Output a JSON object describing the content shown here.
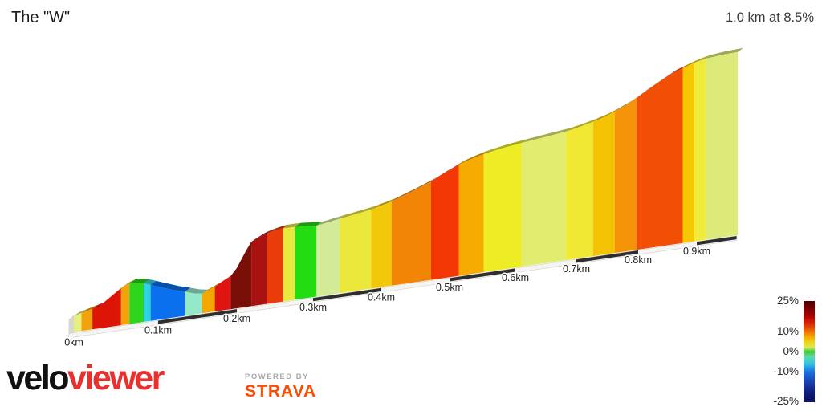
{
  "header": {
    "title": "The \"W\"",
    "summary": "1.0 km at 8.5%"
  },
  "chart_data": {
    "type": "area",
    "title": "The \"W\"",
    "subtitle": "1.0 km at 8.5%",
    "total_distance_km": 1.0,
    "avg_gradient_pct": 8.5,
    "x_ticks": [
      {
        "km": 0.0,
        "label": "0km"
      },
      {
        "km": 0.1,
        "label": "0.1km"
      },
      {
        "km": 0.2,
        "label": "0.2km"
      },
      {
        "km": 0.3,
        "label": "0.3km"
      },
      {
        "km": 0.4,
        "label": "0.4km"
      },
      {
        "km": 0.5,
        "label": "0.5km"
      },
      {
        "km": 0.6,
        "label": "0.6km"
      },
      {
        "km": 0.7,
        "label": "0.7km"
      },
      {
        "km": 0.8,
        "label": "0.8km"
      },
      {
        "km": 0.9,
        "label": "0.9km"
      }
    ],
    "legend": {
      "labels": [
        "25%",
        "10%",
        "0%",
        "-10%",
        "-25%"
      ],
      "values": [
        25,
        10,
        0,
        -10,
        -25
      ],
      "min_pct": -25,
      "max_pct": 25,
      "gradient_stops": [
        {
          "pct": 0,
          "color": "#4c0000"
        },
        {
          "pct": 8,
          "color": "#7e0000"
        },
        {
          "pct": 16,
          "color": "#b40400"
        },
        {
          "pct": 23,
          "color": "#dd2c00"
        },
        {
          "pct": 30,
          "color": "#f07000"
        },
        {
          "pct": 36,
          "color": "#f4ae00"
        },
        {
          "pct": 42,
          "color": "#eede1c"
        },
        {
          "pct": 46,
          "color": "#d2e860"
        },
        {
          "pct": 50,
          "color": "#3ecc30"
        },
        {
          "pct": 55,
          "color": "#5ed8a8"
        },
        {
          "pct": 62,
          "color": "#30c4e8"
        },
        {
          "pct": 70,
          "color": "#1874e0"
        },
        {
          "pct": 80,
          "color": "#1840b4"
        },
        {
          "pct": 90,
          "color": "#101e80"
        },
        {
          "pct": 100,
          "color": "#0a1258"
        }
      ]
    },
    "segments": [
      {
        "from_km": 0.0,
        "to_km": 0.009,
        "gradient_pct": 3,
        "color": "#e9ee7c"
      },
      {
        "from_km": 0.009,
        "to_km": 0.022,
        "gradient_pct": 8,
        "color": "#f2a30b"
      },
      {
        "from_km": 0.022,
        "to_km": 0.056,
        "gradient_pct": 13,
        "color": "#dd1507"
      },
      {
        "from_km": 0.056,
        "to_km": 0.066,
        "gradient_pct": 8,
        "color": "#f2a30b"
      },
      {
        "from_km": 0.066,
        "to_km": 0.083,
        "gradient_pct": 0,
        "color": "#2cd61c"
      },
      {
        "from_km": 0.083,
        "to_km": 0.091,
        "gradient_pct": -5,
        "color": "#2fd4e2"
      },
      {
        "from_km": 0.091,
        "to_km": 0.134,
        "gradient_pct": -9,
        "color": "#0a70ee"
      },
      {
        "from_km": 0.134,
        "to_km": 0.156,
        "gradient_pct": -3,
        "color": "#93e9c9"
      },
      {
        "from_km": 0.156,
        "to_km": 0.172,
        "gradient_pct": 8,
        "color": "#f3a800"
      },
      {
        "from_km": 0.172,
        "to_km": 0.192,
        "gradient_pct": 12,
        "color": "#e01410"
      },
      {
        "from_km": 0.192,
        "to_km": 0.219,
        "gradient_pct": 22,
        "color": "#7a0f08"
      },
      {
        "from_km": 0.219,
        "to_km": 0.239,
        "gradient_pct": 18,
        "color": "#a81210"
      },
      {
        "from_km": 0.239,
        "to_km": 0.26,
        "gradient_pct": 13,
        "color": "#ea3b0a"
      },
      {
        "from_km": 0.26,
        "to_km": 0.276,
        "gradient_pct": 5,
        "color": "#eae73e"
      },
      {
        "from_km": 0.276,
        "to_km": 0.305,
        "gradient_pct": 0,
        "color": "#23dc12"
      },
      {
        "from_km": 0.305,
        "to_km": 0.339,
        "gradient_pct": 3,
        "color": "#d3ea98"
      },
      {
        "from_km": 0.339,
        "to_km": 0.385,
        "gradient_pct": 5,
        "color": "#ebe83b"
      },
      {
        "from_km": 0.385,
        "to_km": 0.415,
        "gradient_pct": 7,
        "color": "#f2c80a"
      },
      {
        "from_km": 0.415,
        "to_km": 0.473,
        "gradient_pct": 9,
        "color": "#f28406"
      },
      {
        "from_km": 0.473,
        "to_km": 0.514,
        "gradient_pct": 13,
        "color": "#f23705"
      },
      {
        "from_km": 0.514,
        "to_km": 0.552,
        "gradient_pct": 7,
        "color": "#f5ab00"
      },
      {
        "from_km": 0.552,
        "to_km": 0.61,
        "gradient_pct": 5,
        "color": "#edec25"
      },
      {
        "from_km": 0.61,
        "to_km": 0.683,
        "gradient_pct": 4,
        "color": "#e2ec6e"
      },
      {
        "from_km": 0.683,
        "to_km": 0.727,
        "gradient_pct": 5,
        "color": "#f0e832"
      },
      {
        "from_km": 0.727,
        "to_km": 0.762,
        "gradient_pct": 7,
        "color": "#f4c404"
      },
      {
        "from_km": 0.762,
        "to_km": 0.797,
        "gradient_pct": 9,
        "color": "#f49208"
      },
      {
        "from_km": 0.797,
        "to_km": 0.876,
        "gradient_pct": 12,
        "color": "#f04f05"
      },
      {
        "from_km": 0.876,
        "to_km": 0.896,
        "gradient_pct": 7,
        "color": "#f5c800"
      },
      {
        "from_km": 0.896,
        "to_km": 0.916,
        "gradient_pct": 5,
        "color": "#f0ea3a"
      },
      {
        "from_km": 0.916,
        "to_km": 0.97,
        "gradient_pct": 3,
        "color": "#dcea7a"
      }
    ],
    "elevation_profile": [
      {
        "km": 0.0,
        "elev_m": 0.0
      },
      {
        "km": 0.03,
        "elev_m": 3.0
      },
      {
        "km": 0.058,
        "elev_m": 11.0
      },
      {
        "km": 0.068,
        "elev_m": 12.5
      },
      {
        "km": 0.081,
        "elev_m": 11.5
      },
      {
        "km": 0.1,
        "elev_m": 8.5
      },
      {
        "km": 0.12,
        "elev_m": 5.6
      },
      {
        "km": 0.134,
        "elev_m": 4.0
      },
      {
        "km": 0.145,
        "elev_m": 2.6
      },
      {
        "km": 0.156,
        "elev_m": 1.8
      },
      {
        "km": 0.172,
        "elev_m": 4.4
      },
      {
        "km": 0.192,
        "elev_m": 8.4
      },
      {
        "km": 0.2,
        "elev_m": 12.0
      },
      {
        "km": 0.206,
        "elev_m": 16.0
      },
      {
        "km": 0.213,
        "elev_m": 20.5
      },
      {
        "km": 0.219,
        "elev_m": 24.0
      },
      {
        "km": 0.229,
        "elev_m": 25.8
      },
      {
        "km": 0.239,
        "elev_m": 27.0
      },
      {
        "km": 0.252,
        "elev_m": 28.0
      },
      {
        "km": 0.26,
        "elev_m": 28.4
      },
      {
        "km": 0.276,
        "elev_m": 28.3
      },
      {
        "km": 0.29,
        "elev_m": 27.8
      },
      {
        "km": 0.305,
        "elev_m": 27.3
      },
      {
        "km": 0.32,
        "elev_m": 28.1
      },
      {
        "km": 0.339,
        "elev_m": 29.1
      },
      {
        "km": 0.362,
        "elev_m": 30.2
      },
      {
        "km": 0.385,
        "elev_m": 31.4
      },
      {
        "km": 0.4,
        "elev_m": 32.6
      },
      {
        "km": 0.415,
        "elev_m": 33.9
      },
      {
        "km": 0.44,
        "elev_m": 36.8
      },
      {
        "km": 0.473,
        "elev_m": 41.0
      },
      {
        "km": 0.49,
        "elev_m": 43.7
      },
      {
        "km": 0.514,
        "elev_m": 47.4
      },
      {
        "km": 0.53,
        "elev_m": 49.0
      },
      {
        "km": 0.552,
        "elev_m": 50.8
      },
      {
        "km": 0.58,
        "elev_m": 52.4
      },
      {
        "km": 0.61,
        "elev_m": 53.6
      },
      {
        "km": 0.65,
        "elev_m": 54.9
      },
      {
        "km": 0.683,
        "elev_m": 56.0
      },
      {
        "km": 0.7,
        "elev_m": 57.0
      },
      {
        "km": 0.727,
        "elev_m": 58.9
      },
      {
        "km": 0.745,
        "elev_m": 60.5
      },
      {
        "km": 0.762,
        "elev_m": 62.5
      },
      {
        "km": 0.78,
        "elev_m": 64.9
      },
      {
        "km": 0.797,
        "elev_m": 67.6
      },
      {
        "km": 0.815,
        "elev_m": 70.8
      },
      {
        "km": 0.832,
        "elev_m": 73.5
      },
      {
        "km": 0.855,
        "elev_m": 77.0
      },
      {
        "km": 0.876,
        "elev_m": 79.1
      },
      {
        "km": 0.896,
        "elev_m": 81.0
      },
      {
        "km": 0.916,
        "elev_m": 82.2
      },
      {
        "km": 0.944,
        "elev_m": 82.9
      },
      {
        "km": 0.97,
        "elev_m": 83.2
      }
    ]
  },
  "footer": {
    "brand_black": "velo",
    "brand_red": "viewer",
    "brand_red_color": "#e8312f",
    "powered_by": "POWERED BY",
    "strava": "STRAVA",
    "strava_color": "#fc4c02"
  }
}
